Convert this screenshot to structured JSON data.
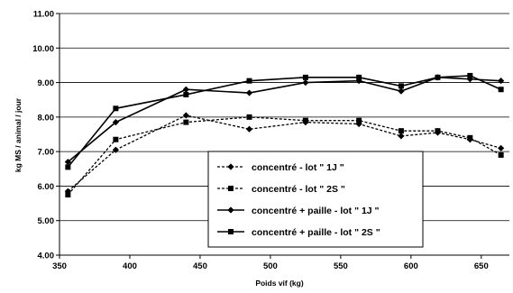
{
  "chart_data": {
    "type": "line",
    "title": "",
    "xlabel": "Poids vif (kg)",
    "ylabel": "kg MS / animal / jour",
    "xlim": [
      350,
      670
    ],
    "ylim": [
      4.0,
      11.0
    ],
    "x_ticks": [
      "350",
      "400",
      "450",
      "500",
      "550",
      "600",
      "650"
    ],
    "y_ticks": [
      "4.00",
      "5.00",
      "6.00",
      "7.00",
      "8.00",
      "9.00",
      "10.00",
      "11.00"
    ],
    "grid": "horizontal",
    "legend_position": "center-right",
    "series": [
      {
        "name": "concentré - lot \" 1J \"",
        "line": "dashed",
        "marker": "diamond",
        "color": "#000000",
        "x": [
          356,
          390,
          440,
          485,
          525,
          563,
          593,
          619,
          642,
          664
        ],
        "y": [
          5.85,
          7.05,
          8.05,
          7.65,
          7.85,
          7.8,
          7.45,
          7.55,
          7.35,
          7.1
        ]
      },
      {
        "name": "concentré - lot \" 2S \"",
        "line": "dashed",
        "marker": "square",
        "color": "#000000",
        "x": [
          356,
          390,
          440,
          485,
          525,
          563,
          593,
          619,
          642,
          664
        ],
        "y": [
          5.75,
          7.35,
          7.85,
          8.0,
          7.9,
          7.9,
          7.6,
          7.6,
          7.4,
          6.9
        ]
      },
      {
        "name": "concentré + paille - lot \" 1J \"",
        "line": "solid",
        "marker": "diamond",
        "color": "#000000",
        "x": [
          356,
          390,
          440,
          485,
          525,
          563,
          593,
          619,
          642,
          664
        ],
        "y": [
          6.7,
          7.85,
          8.8,
          8.7,
          9.0,
          9.05,
          8.75,
          9.15,
          9.1,
          9.05
        ]
      },
      {
        "name": "concentré + paille - lot \" 2S \"",
        "line": "solid",
        "marker": "square",
        "color": "#000000",
        "x": [
          356,
          390,
          440,
          485,
          525,
          563,
          593,
          619,
          642,
          664
        ],
        "y": [
          6.55,
          8.25,
          8.65,
          9.05,
          9.15,
          9.15,
          8.9,
          9.15,
          9.2,
          8.8
        ]
      }
    ]
  }
}
